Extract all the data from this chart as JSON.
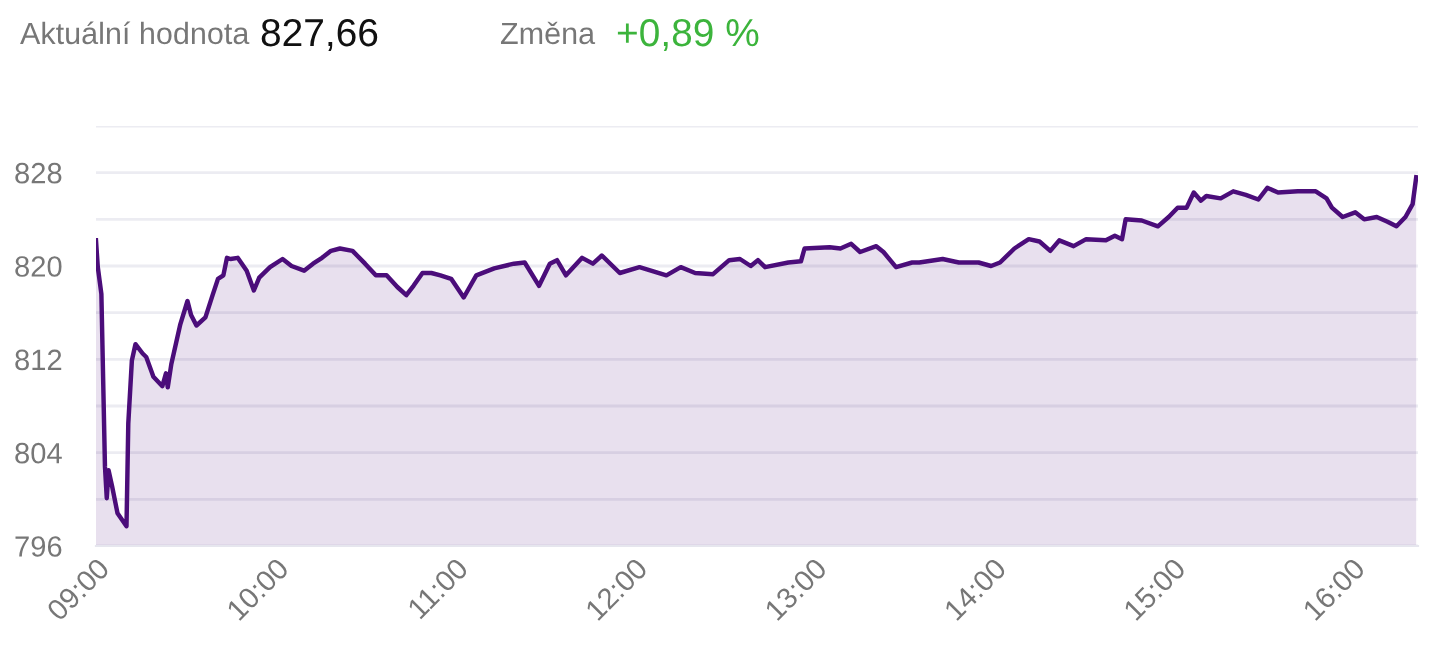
{
  "chart_data": {
    "type": "area",
    "annotations": [
      "Aktuální hodnota",
      "827,66",
      "Změna",
      "+0,89 %"
    ],
    "x": [
      9.0,
      9.01,
      9.03,
      9.05,
      9.06,
      9.07,
      9.09,
      9.12,
      9.17,
      9.18,
      9.2,
      9.22,
      9.26,
      9.28,
      9.32,
      9.37,
      9.39,
      9.4,
      9.42,
      9.47,
      9.51,
      9.53,
      9.56,
      9.61,
      9.65,
      9.68,
      9.71,
      9.73,
      9.75,
      9.79,
      9.84,
      9.88,
      9.91,
      9.97,
      10.04,
      10.09,
      10.16,
      10.21,
      10.26,
      10.31,
      10.36,
      10.43,
      10.5,
      10.56,
      10.62,
      10.68,
      10.73,
      10.77,
      10.82,
      10.87,
      10.92,
      10.98,
      11.05,
      11.12,
      11.22,
      11.33,
      11.39,
      11.47,
      11.53,
      11.57,
      11.62,
      11.71,
      11.77,
      11.82,
      11.92,
      12.03,
      12.18,
      12.26,
      12.34,
      12.44,
      12.53,
      12.59,
      12.65,
      12.69,
      12.73,
      12.86,
      12.93,
      12.95,
      13.09,
      13.15,
      13.21,
      13.26,
      13.35,
      13.39,
      13.46,
      13.55,
      13.59,
      13.72,
      13.81,
      13.92,
      13.99,
      14.04,
      14.12,
      14.2,
      14.26,
      14.32,
      14.37,
      14.45,
      14.52,
      14.63,
      14.68,
      14.72,
      14.74,
      14.83,
      14.92,
      14.98,
      15.03,
      15.08,
      15.12,
      15.16,
      15.19,
      15.27,
      15.34,
      15.41,
      15.48,
      15.53,
      15.59,
      15.7,
      15.8,
      15.86,
      15.89,
      15.95,
      16.02,
      16.07,
      16.14,
      16.2,
      16.25,
      16.3,
      16.34,
      16.36
    ],
    "series": [
      {
        "color": "#4b0d7a",
        "values": [
          822.2,
          819.9,
          817.6,
          802.8,
          800.1,
          802.5,
          801.1,
          798.8,
          797.7,
          806.5,
          811.9,
          813.3,
          812.5,
          812.2,
          810.5,
          809.7,
          810.8,
          809.6,
          811.6,
          815.0,
          817.0,
          815.8,
          814.9,
          815.6,
          817.5,
          818.9,
          819.2,
          820.7,
          820.6,
          820.7,
          819.6,
          817.9,
          819.0,
          819.9,
          820.6,
          820.0,
          819.6,
          820.2,
          820.7,
          821.3,
          821.5,
          821.3,
          820.2,
          819.2,
          819.2,
          818.2,
          817.5,
          818.3,
          819.4,
          819.4,
          819.2,
          818.9,
          817.3,
          819.2,
          819.8,
          820.2,
          820.3,
          818.3,
          820.2,
          820.5,
          819.2,
          820.7,
          820.2,
          820.9,
          819.4,
          819.9,
          819.2,
          819.9,
          819.4,
          819.3,
          820.5,
          820.6,
          820.0,
          820.5,
          819.9,
          820.3,
          820.4,
          821.5,
          821.6,
          821.5,
          821.9,
          821.2,
          821.7,
          821.2,
          819.9,
          820.3,
          820.3,
          820.6,
          820.3,
          820.3,
          820.0,
          820.3,
          821.5,
          822.3,
          822.1,
          821.3,
          822.2,
          821.7,
          822.3,
          822.2,
          822.6,
          822.3,
          824.0,
          823.9,
          823.4,
          824.2,
          825.0,
          825.0,
          826.3,
          825.6,
          826.0,
          825.8,
          826.4,
          826.1,
          825.7,
          826.7,
          826.3,
          826.4,
          826.4,
          825.8,
          825.0,
          824.2,
          824.6,
          824.0,
          824.2,
          823.8,
          823.4,
          824.2,
          825.3,
          827.6
        ]
      }
    ],
    "xlim": [
      9,
      16.37
    ],
    "xticks": [
      {
        "value": 9,
        "label": "09:00"
      },
      {
        "value": 10,
        "label": "10:00"
      },
      {
        "value": 11,
        "label": "11:00"
      },
      {
        "value": 12,
        "label": "12:00"
      },
      {
        "value": 13,
        "label": "13:00"
      },
      {
        "value": 14,
        "label": "14:00"
      },
      {
        "value": 15,
        "label": "15:00"
      },
      {
        "value": 16,
        "label": "16:00"
      }
    ],
    "ylim": [
      796,
      832
    ],
    "yticks": [
      796,
      {
        "value": 800,
        "label": null
      },
      804,
      {
        "value": 808,
        "label": null
      },
      812,
      {
        "value": 816,
        "label": null
      },
      820,
      {
        "value": 824,
        "label": null
      },
      828,
      {
        "value": 832,
        "label": null
      }
    ],
    "grid": "y",
    "marker": "none",
    "line_style": "solid"
  }
}
